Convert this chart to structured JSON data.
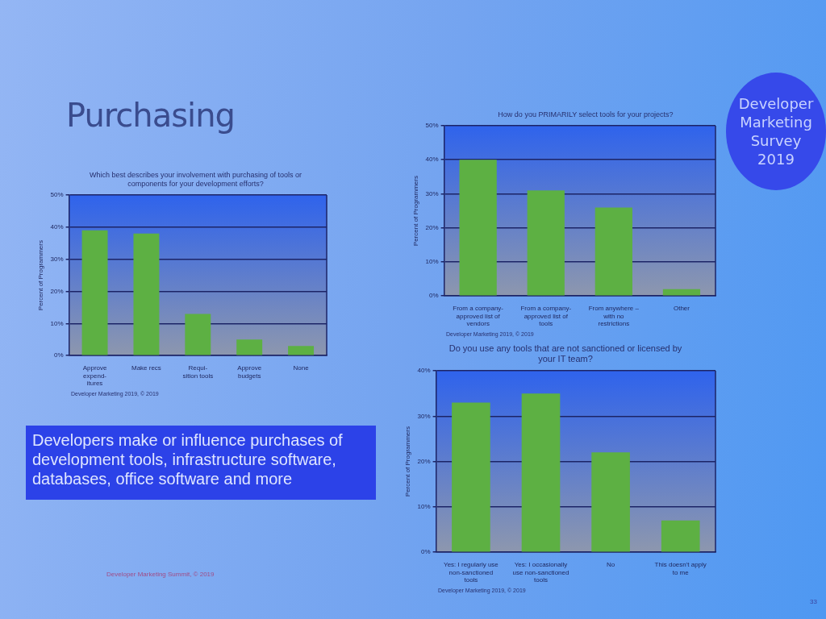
{
  "chart_data": [
    {
      "type": "other",
      "title": "Purchasing",
      "annotations": [
        "Developer Marketing Survey 2019",
        "Developers make or influence purchases of development tools, infrastructure software, databases, office software and more",
        "Developer Marketing Summit, © 2019",
        "33"
      ]
    },
    {
      "type": "bar",
      "title": "Which best describes your involvement with purchasing of tools or components for your development efforts?",
      "ylabel": "Percent of Programmers",
      "categories": [
        "Approve expend-itures",
        "Make recs",
        "Requi-sition tools",
        "Approve budgets",
        "None"
      ],
      "values": [
        39,
        38,
        13,
        5,
        3
      ],
      "color": "#5db043",
      "ylim": [
        0,
        50
      ],
      "yticks": [
        {
          "value": 0,
          "label": "0%"
        },
        {
          "value": 10,
          "label": "10%"
        },
        {
          "value": 20,
          "label": "20%"
        },
        {
          "value": 30,
          "label": "30%"
        },
        {
          "value": 40,
          "label": "40%"
        },
        {
          "value": 50,
          "label": "50%"
        }
      ],
      "grid": "y",
      "annotations": [
        "Developer Marketing 2019, © 2019"
      ]
    },
    {
      "type": "bar",
      "title": "How do you PRIMARILY select tools for your projects?",
      "ylabel": "Percent of Programmers",
      "categories": [
        "From a company-approved list of vendors",
        "From a company-approved list of tools",
        "From anywhere – with no restrictions",
        "Other"
      ],
      "values": [
        40,
        31,
        26,
        2
      ],
      "color": "#5db043",
      "ylim": [
        0,
        50
      ],
      "yticks": [
        {
          "value": 0,
          "label": "0%"
        },
        {
          "value": 10,
          "label": "10%"
        },
        {
          "value": 20,
          "label": "20%"
        },
        {
          "value": 30,
          "label": "30%"
        },
        {
          "value": 40,
          "label": "40%"
        },
        {
          "value": 50,
          "label": "50%"
        }
      ],
      "grid": "y",
      "annotations": [
        "Developer Marketing 2019, © 2019"
      ]
    },
    {
      "type": "bar",
      "title": "Do you use any tools that are not sanctioned or licensed by your IT team?",
      "ylabel": "Percent of Programmers",
      "categories": [
        "Yes: I regularly use non-sanctioned tools",
        "Yes: I occasionally use non-sanctioned tools",
        "No",
        "This doesn't apply to me"
      ],
      "values": [
        33,
        35,
        22,
        7
      ],
      "color": "#5db043",
      "ylim": [
        0,
        40
      ],
      "yticks": [
        {
          "value": 0,
          "label": "0%"
        },
        {
          "value": 10,
          "label": "10%"
        },
        {
          "value": 20,
          "label": "20%"
        },
        {
          "value": 30,
          "label": "30%"
        },
        {
          "value": 40,
          "label": "40%"
        }
      ],
      "grid": "y",
      "annotations": [
        "Developer Marketing 2019, © 2019"
      ]
    }
  ]
}
